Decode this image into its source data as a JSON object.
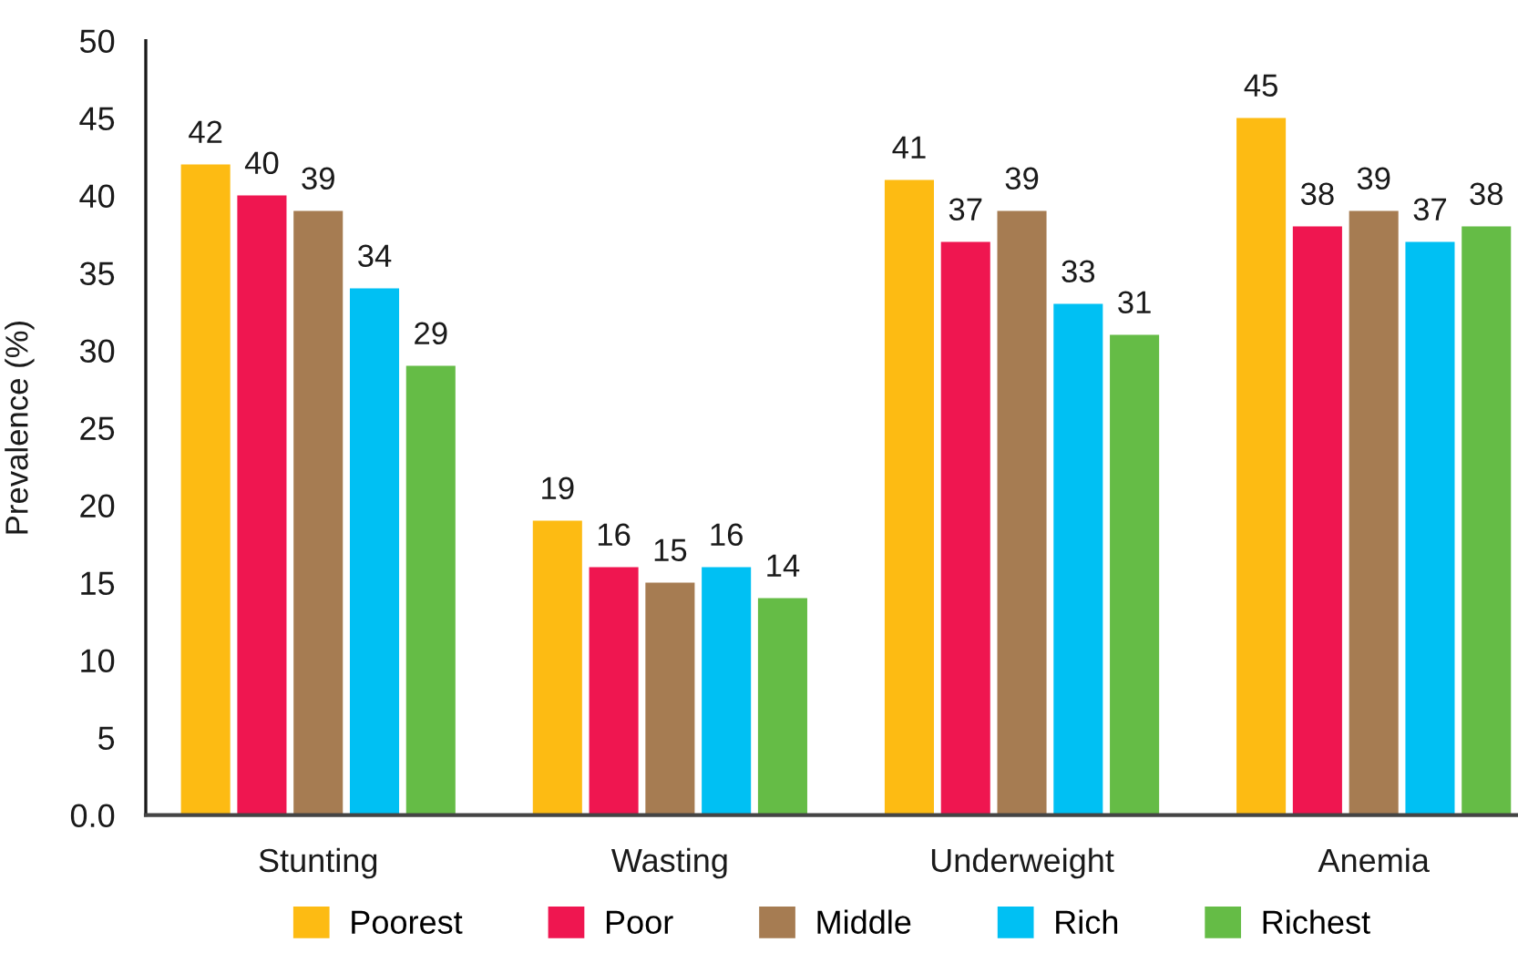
{
  "chart_data": {
    "type": "bar",
    "ylabel": "Prevalence (%)",
    "categories": [
      "Stunting",
      "Wasting",
      "Underweight",
      "Anemia"
    ],
    "series": [
      {
        "name": "Poorest",
        "color": "#fdbb13",
        "values": [
          42,
          19,
          41,
          45
        ]
      },
      {
        "name": "Poor",
        "color": "#ef1650",
        "values": [
          40,
          16,
          37,
          38
        ]
      },
      {
        "name": "Middle",
        "color": "#a67c52",
        "values": [
          39,
          15,
          39,
          39
        ]
      },
      {
        "name": "Rich",
        "color": "#00c0f3",
        "values": [
          34,
          16,
          33,
          37
        ]
      },
      {
        "name": "Richest",
        "color": "#65bc46",
        "values": [
          29,
          14,
          31,
          38
        ]
      }
    ],
    "ylim": [
      0,
      50
    ],
    "yticks": [
      {
        "value": 0,
        "label": "0.0"
      },
      5,
      10,
      15,
      20,
      25,
      30,
      35,
      40,
      45,
      50
    ],
    "data_labels": true,
    "legend": "bottom"
  }
}
